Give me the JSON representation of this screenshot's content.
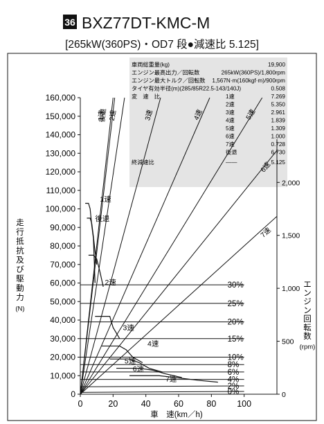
{
  "header": {
    "badge": "36",
    "model": "BXZ77DT-KMC-M",
    "subtitle": "[265kW(360PS)・OD7 段●減速比 5.125]"
  },
  "specs": [
    {
      "label": "車両総重量(kg)",
      "value": "19,900"
    },
    {
      "label": "エンジン最高出力／回転数",
      "value": "265kW(360PS)/1,800rpm"
    },
    {
      "label": "エンジン最大トルク／回転数",
      "value": "1,567N·m(160kgf·m)/900rpm"
    },
    {
      "label": "タイヤ有効半径(m)(285/85R22.5-143/140J)",
      "value": "0.508"
    }
  ],
  "ratio_heading": "変　速　比",
  "ratios": [
    {
      "gear": "1速",
      "value": "7.269"
    },
    {
      "gear": "2速",
      "value": "5.350"
    },
    {
      "gear": "3速",
      "value": "2.961"
    },
    {
      "gear": "4速",
      "value": "1.839"
    },
    {
      "gear": "5速",
      "value": "1.309"
    },
    {
      "gear": "6速",
      "value": "1.000"
    },
    {
      "gear": "7速",
      "value": "0.728"
    },
    {
      "gear": "後退",
      "value": "6.730"
    }
  ],
  "final": {
    "label": "終減速比",
    "dash": "——",
    "value": "5.125"
  },
  "chart_data": {
    "type": "line",
    "xlabel": "車　速(km／h)",
    "ylabel_left": "走行抵抗及び駆動力",
    "ylabel_left_unit": "(N)",
    "ylabel_right": "エンジン回転数",
    "ylabel_right_unit": "(rpm)",
    "xlim": [
      0,
      120
    ],
    "ylim": [
      0,
      160000
    ],
    "x_ticks": [
      0,
      20,
      40,
      60,
      80,
      100
    ],
    "x_tick_labels": [
      "0",
      "20",
      "40",
      "60",
      "80",
      "100"
    ],
    "y_ticks": [
      0,
      10000,
      20000,
      30000,
      40000,
      50000,
      60000,
      70000,
      80000,
      90000,
      100000,
      110000,
      120000,
      130000,
      140000,
      150000,
      160000
    ],
    "y_tick_labels": [
      "0",
      "10,000",
      "20,000",
      "30,000",
      "40,000",
      "50,000",
      "60,000",
      "70,000",
      "80,000",
      "90,000",
      "100,000",
      "110,000",
      "120,000",
      "130,000",
      "140,000",
      "150,000",
      "160,000"
    ],
    "rpm_ticks": [
      0,
      500,
      1000,
      1500,
      2000
    ],
    "rpm_tick_labels": [
      "0",
      "500",
      "1,000",
      "1,500",
      "2,000"
    ],
    "rpm_max": 2800,
    "rpm_lines": [
      {
        "name": "1速",
        "speed_at_max": 20
      },
      {
        "name": "後退",
        "speed_at_max": 21
      },
      {
        "name": "2速",
        "speed_at_max": 27
      },
      {
        "name": "3速",
        "speed_at_max": 49
      },
      {
        "name": "4速",
        "speed_at_max": 79
      },
      {
        "name": "5速",
        "speed_at_max": 111
      },
      {
        "name": "6速",
        "speed_at_max": 146
      },
      {
        "name": "7速",
        "speed_at_max": 200
      }
    ],
    "driving_force": [
      {
        "name": "1速",
        "points": [
          [
            3,
            103000
          ],
          [
            5,
            103000
          ],
          [
            6,
            100000
          ],
          [
            7,
            91000
          ],
          [
            8,
            84000
          ],
          [
            9,
            60000
          ]
        ]
      },
      {
        "name": "後退",
        "points": [
          [
            4,
            95000
          ],
          [
            6,
            95000
          ],
          [
            7,
            92000
          ],
          [
            8,
            85000
          ],
          [
            9,
            77000
          ],
          [
            10,
            70000
          ]
        ]
      },
      {
        "name": "2速",
        "points": [
          [
            5,
            75000
          ],
          [
            8,
            75000
          ],
          [
            10,
            73000
          ],
          [
            12,
            66000
          ],
          [
            14,
            58000
          ]
        ]
      },
      {
        "name": "3速",
        "points": [
          [
            9,
            42000
          ],
          [
            13,
            42000
          ],
          [
            18,
            42000
          ],
          [
            20,
            36000
          ],
          [
            24,
            30000
          ]
        ]
      },
      {
        "name": "4速",
        "points": [
          [
            13,
            26000
          ],
          [
            24,
            26000
          ],
          [
            28,
            24000
          ],
          [
            32,
            20000
          ],
          [
            38,
            17000
          ]
        ]
      },
      {
        "name": "5速",
        "points": [
          [
            18,
            19000
          ],
          [
            30,
            19000
          ],
          [
            36,
            17000
          ],
          [
            42,
            14000
          ],
          [
            50,
            12000
          ]
        ]
      },
      {
        "name": "6速",
        "points": [
          [
            22,
            14000
          ],
          [
            36,
            14000
          ],
          [
            44,
            13000
          ],
          [
            52,
            11000
          ],
          [
            62,
            9000
          ]
        ]
      },
      {
        "name": "7速",
        "points": [
          [
            30,
            10000
          ],
          [
            48,
            10000
          ],
          [
            58,
            9000
          ],
          [
            72,
            7500
          ],
          [
            84,
            6500
          ]
        ]
      }
    ],
    "resistance": [
      {
        "name": "0%",
        "points": [
          [
            0,
            1000
          ],
          [
            100,
            1500
          ]
        ]
      },
      {
        "name": "2%",
        "points": [
          [
            0,
            4000
          ],
          [
            100,
            4500
          ]
        ]
      },
      {
        "name": "4%",
        "points": [
          [
            0,
            8000
          ],
          [
            100,
            8000
          ]
        ]
      },
      {
        "name": "6%",
        "points": [
          [
            0,
            12000
          ],
          [
            100,
            12000
          ]
        ]
      },
      {
        "name": "8%",
        "points": [
          [
            0,
            16000
          ],
          [
            100,
            16000
          ]
        ]
      },
      {
        "name": "10%",
        "points": [
          [
            0,
            20000
          ],
          [
            100,
            20000
          ]
        ]
      },
      {
        "name": "15%",
        "points": [
          [
            0,
            30000
          ],
          [
            100,
            30000
          ]
        ]
      },
      {
        "name": "20%",
        "points": [
          [
            0,
            39000
          ],
          [
            100,
            39000
          ]
        ]
      },
      {
        "name": "25%",
        "points": [
          [
            0,
            49000
          ],
          [
            100,
            49000
          ]
        ]
      },
      {
        "name": "30%",
        "points": [
          [
            0,
            59000
          ],
          [
            100,
            59000
          ]
        ]
      }
    ],
    "annotations": {
      "1速": {
        "x": 12,
        "y": 104000
      },
      "後退": {
        "x": 9,
        "y": 93500
      },
      "2速": {
        "x": 15,
        "y": 59000
      },
      "3速": {
        "x": 26,
        "y": 34500
      },
      "4速": {
        "x": 41,
        "y": 26000
      },
      "5速": {
        "x": 27,
        "y": 16700
      },
      "6速": {
        "x": 32,
        "y": 12300
      },
      "7速": {
        "x": 52,
        "y": 7000
      }
    },
    "grid": false,
    "colors": {
      "line": "#111111",
      "panel": "#e4e4e4"
    }
  }
}
